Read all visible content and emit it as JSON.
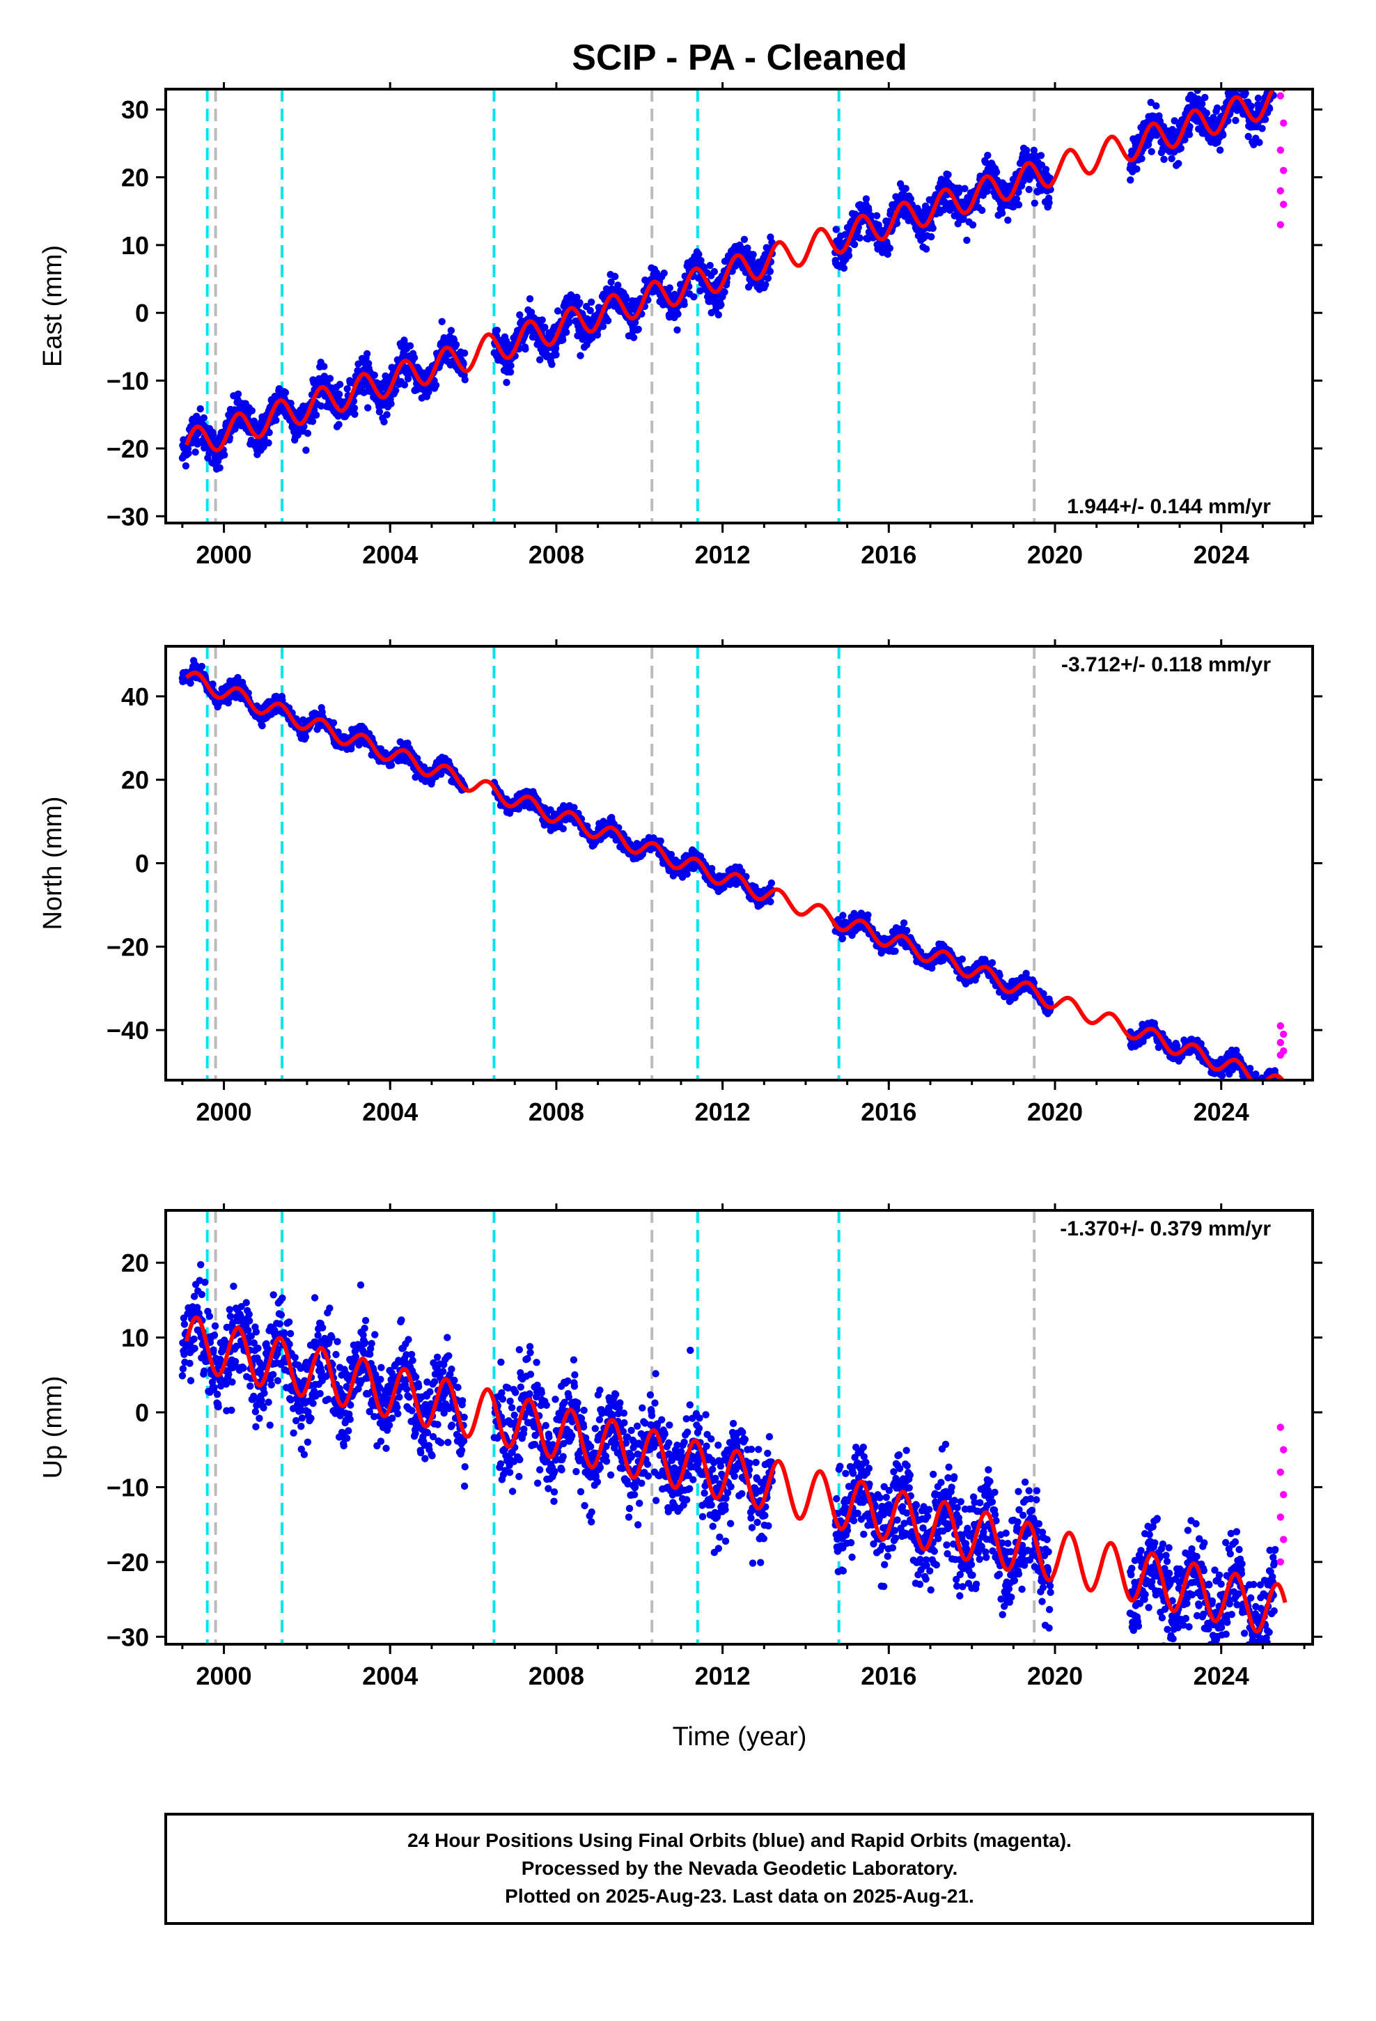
{
  "chart_data": [
    {
      "type": "scatter",
      "title": "SCIP  - PA - Cleaned",
      "xlabel": "",
      "ylabel": "East (mm)",
      "xlim": [
        1998.6,
        2026.2
      ],
      "ylim": [
        -31,
        33
      ],
      "xticks": [
        "2000",
        "2004",
        "2008",
        "2012",
        "2016",
        "2020",
        "2024"
      ],
      "yticks": [
        "-30",
        "-20",
        "-10",
        "0",
        "10",
        "20",
        "30"
      ],
      "rate_label": "1.944+/- 0.144 mm/yr",
      "model": {
        "start": [
          1999.1,
          -19.5
        ],
        "rate": 1.944,
        "seasonal_amp": 2.2
      },
      "series": [
        {
          "color": "#0000ee",
          "x_range": [
            1999.0,
            2025.3
          ],
          "spread": 2.5,
          "gaps": [
            [
              2005.8,
              2006.5
            ],
            [
              2013.2,
              2014.7
            ],
            [
              2019.9,
              2021.8
            ]
          ]
        },
        {
          "color": "#ff00ff",
          "x_range": [
            2025.35,
            2025.6
          ],
          "values_y": [
            32,
            28,
            24,
            21,
            18,
            16,
            13
          ]
        }
      ],
      "cyan_lines_x": [
        1999.6,
        2001.4,
        2006.5,
        2011.4,
        2014.8
      ],
      "gray_lines_x": [
        1999.8,
        2010.3,
        2019.5
      ]
    },
    {
      "type": "scatter",
      "title": "",
      "xlabel": "",
      "ylabel": "North (mm)",
      "xlim": [
        1998.6,
        2026.2
      ],
      "ylim": [
        -52,
        52
      ],
      "xticks": [
        "2000",
        "2004",
        "2008",
        "2012",
        "2016",
        "2020",
        "2024"
      ],
      "yticks": [
        "-40",
        "-20",
        "0",
        "20",
        "40"
      ],
      "rate_label": "-3.712+/- 0.118 mm/yr",
      "model": {
        "start": [
          1999.1,
          44.5
        ],
        "rate": -3.712,
        "seasonal_amp": 2.0
      },
      "series": [
        {
          "color": "#0000ee",
          "x_range": [
            1999.0,
            2025.3
          ],
          "spread": 1.8,
          "gaps": [
            [
              2005.8,
              2006.5
            ],
            [
              2013.2,
              2014.7
            ],
            [
              2019.9,
              2021.8
            ]
          ]
        },
        {
          "color": "#ff00ff",
          "x_range": [
            2025.35,
            2025.6
          ],
          "values_y": [
            -39,
            -41,
            -43,
            -45,
            -46
          ]
        }
      ],
      "cyan_lines_x": [
        1999.6,
        2001.4,
        2006.5,
        2011.4,
        2014.8
      ],
      "gray_lines_x": [
        1999.8,
        2010.3,
        2019.5
      ]
    },
    {
      "type": "scatter",
      "title": "",
      "xlabel": "Time (year)",
      "ylabel": "Up (mm)",
      "xlim": [
        1998.6,
        2026.2
      ],
      "ylim": [
        -31,
        27
      ],
      "xticks": [
        "2000",
        "2004",
        "2008",
        "2012",
        "2016",
        "2020",
        "2024"
      ],
      "yticks": [
        "-30",
        "-20",
        "-10",
        "0",
        "10",
        "20"
      ],
      "rate_label": "-1.370+/- 0.379 mm/yr",
      "model": {
        "start": [
          1999.1,
          9.5
        ],
        "rate": -1.37,
        "seasonal_amp": 3.5
      },
      "series": [
        {
          "color": "#0000ee",
          "x_range": [
            1999.0,
            2025.3
          ],
          "spread": 5.5,
          "gaps": [
            [
              2005.8,
              2006.5
            ],
            [
              2013.2,
              2014.7
            ],
            [
              2019.9,
              2021.8
            ]
          ]
        },
        {
          "color": "#ff00ff",
          "x_range": [
            2025.35,
            2025.6
          ],
          "values_y": [
            -2,
            -5,
            -8,
            -11,
            -14,
            -17,
            -20
          ]
        }
      ],
      "cyan_lines_x": [
        1999.6,
        2001.4,
        2006.5,
        2011.4,
        2014.8
      ],
      "gray_lines_x": [
        1999.8,
        2010.3,
        2019.5
      ]
    }
  ],
  "footer": {
    "line1": "24 Hour Positions Using Final Orbits (blue) and Rapid Orbits (magenta).",
    "line2": "Processed by the Nevada Geodetic Laboratory.",
    "line3": "Plotted on 2025-Aug-23. Last data on 2025-Aug-21."
  }
}
